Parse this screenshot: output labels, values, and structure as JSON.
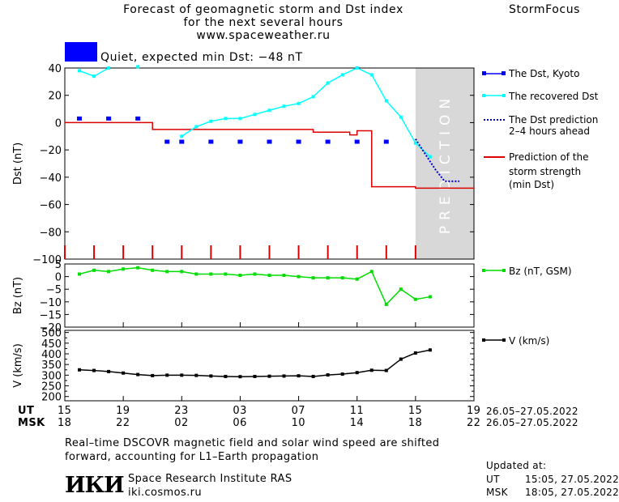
{
  "header": {
    "title_line1": "Forecast of geomagnetic storm and Dst index",
    "title_line2": "for the next several hours",
    "title_line3": "www.spaceweather.ru",
    "brand": "StormFocus",
    "status_text": "Quiet, expected min Dst: −48 nT",
    "status_color": "#0000ff"
  },
  "legend": {
    "dst_kyoto": "The Dst, Kyoto",
    "recovered": "The recovered Dst",
    "prediction_line1": "The Dst prediction",
    "prediction_line2": "2–4 hours ahead",
    "storm_line1": "Prediction of the",
    "storm_line2": "storm strength",
    "storm_line3": "(min Dst)",
    "bz": "Bz (nT, GSM)",
    "v": "V (km/s)"
  },
  "time_axis": {
    "ut_label": "UT",
    "msk_label": "MSK",
    "ut_ticks": [
      "15",
      "19",
      "23",
      "03",
      "07",
      "11",
      "15",
      "19"
    ],
    "msk_ticks": [
      "18",
      "22",
      "02",
      "06",
      "10",
      "14",
      "18",
      "22"
    ],
    "ut_range": "26.05–27.05.2022",
    "msk_range": "26.05–27.05.2022"
  },
  "prediction_band_text": "PREDICTION",
  "footer": {
    "note_line1": "Real–time DSCOVR magnetic field and solar wind speed are shifted",
    "note_line2": "forward, accounting for L1–Earth propagation",
    "logo_text": "ИКИ",
    "institute": "Space Research Institute RAS",
    "website": "iki.cosmos.ru",
    "updated_label": "Updated at:",
    "ut_label": "UT",
    "ut_time": "15:05, 27.05.2022",
    "msk_label": "MSK",
    "msk_time": "18:05, 27.05.2022"
  },
  "chart_data": [
    {
      "type": "line",
      "ylabel": "Dst (nT)",
      "ylim": [
        -100,
        40
      ],
      "yticks": [
        40,
        20,
        0,
        -20,
        -40,
        -60,
        -80,
        -100
      ],
      "x_unit": "hours after 15 UT 26.05.2022",
      "xlim": [
        0,
        28
      ],
      "prediction_start_hour": 24,
      "colors": {
        "kyoto": "#0000ff",
        "recovered": "#00ffff",
        "prediction": "#0000cc",
        "storm": "#dd0000"
      },
      "series": [
        {
          "name": "The Dst, Kyoto",
          "style": "markers",
          "x": [
            1,
            3,
            5,
            7,
            8,
            10,
            12,
            14,
            16,
            18,
            20,
            22
          ],
          "y": [
            3,
            3,
            3,
            -14,
            -14,
            -14,
            -14,
            -14,
            -14,
            -14,
            -14,
            -14
          ]
        },
        {
          "name": "The recovered Dst",
          "style": "line+markers",
          "x": [
            1,
            2,
            3,
            5,
            8,
            9,
            10,
            11,
            12,
            13,
            14,
            15,
            16,
            17,
            18,
            19,
            20,
            21,
            22,
            23,
            24,
            25
          ],
          "y": [
            38,
            34,
            40,
            41,
            -10,
            -3,
            1,
            3,
            3,
            6,
            9,
            12,
            14,
            19,
            29,
            35,
            40,
            35,
            16,
            4,
            -15,
            -25
          ]
        },
        {
          "name": "The Dst prediction 2–4 hours ahead",
          "style": "dotted",
          "x": [
            24,
            24.6,
            25.4,
            26,
            26.8,
            27
          ],
          "y": [
            -12,
            -22,
            -35,
            -43,
            -43,
            -43
          ]
        },
        {
          "name": "Prediction of the storm strength (min Dst)",
          "style": "step",
          "x": [
            0,
            5,
            6,
            8,
            15,
            17,
            19,
            19.5,
            20,
            21,
            22,
            24,
            28
          ],
          "y": [
            0,
            0,
            -5,
            -5,
            -5,
            -7,
            -7,
            -9,
            -6,
            -47,
            -47,
            -48,
            -48
          ]
        }
      ],
      "time_marks_hours": [
        0,
        2,
        4,
        6,
        8,
        10,
        12,
        14,
        16,
        18,
        20,
        22,
        24
      ]
    },
    {
      "type": "line",
      "ylabel": "Bz (nT)",
      "ylim": [
        -20,
        5
      ],
      "yticks": [
        5,
        0,
        -5,
        -10,
        -15,
        -20
      ],
      "xlim": [
        0,
        28
      ],
      "color": "#00dd00",
      "series": [
        {
          "name": "Bz (nT, GSM)",
          "x": [
            1,
            2,
            3,
            4,
            5,
            6,
            7,
            8,
            9,
            10,
            11,
            12,
            13,
            14,
            15,
            16,
            17,
            18,
            19,
            20,
            21,
            22,
            23,
            24,
            25
          ],
          "y": [
            1,
            2.5,
            2,
            3,
            3.5,
            2.5,
            2,
            2,
            1,
            1,
            1,
            0.5,
            1,
            0.5,
            0.5,
            0,
            -0.5,
            -0.5,
            -0.5,
            -1,
            2,
            -11,
            -5,
            -9,
            -8
          ]
        }
      ]
    },
    {
      "type": "line",
      "ylabel": "V (km/s)",
      "ylim": [
        180,
        510
      ],
      "yticks": [
        500,
        450,
        400,
        350,
        300,
        250,
        200
      ],
      "minor_yticks": [
        475,
        425,
        375,
        325,
        275,
        225
      ],
      "xlim": [
        0,
        28
      ],
      "color": "#000000",
      "series": [
        {
          "name": "V (km/s)",
          "x": [
            1,
            2,
            3,
            4,
            5,
            6,
            7,
            8,
            9,
            10,
            11,
            12,
            13,
            14,
            15,
            16,
            17,
            18,
            19,
            20,
            21,
            22,
            23,
            24,
            25
          ],
          "y": [
            325,
            322,
            317,
            310,
            303,
            298,
            300,
            300,
            299,
            296,
            294,
            293,
            294,
            295,
            296,
            297,
            294,
            301,
            305,
            312,
            323,
            322,
            375,
            404,
            418
          ]
        }
      ]
    }
  ]
}
